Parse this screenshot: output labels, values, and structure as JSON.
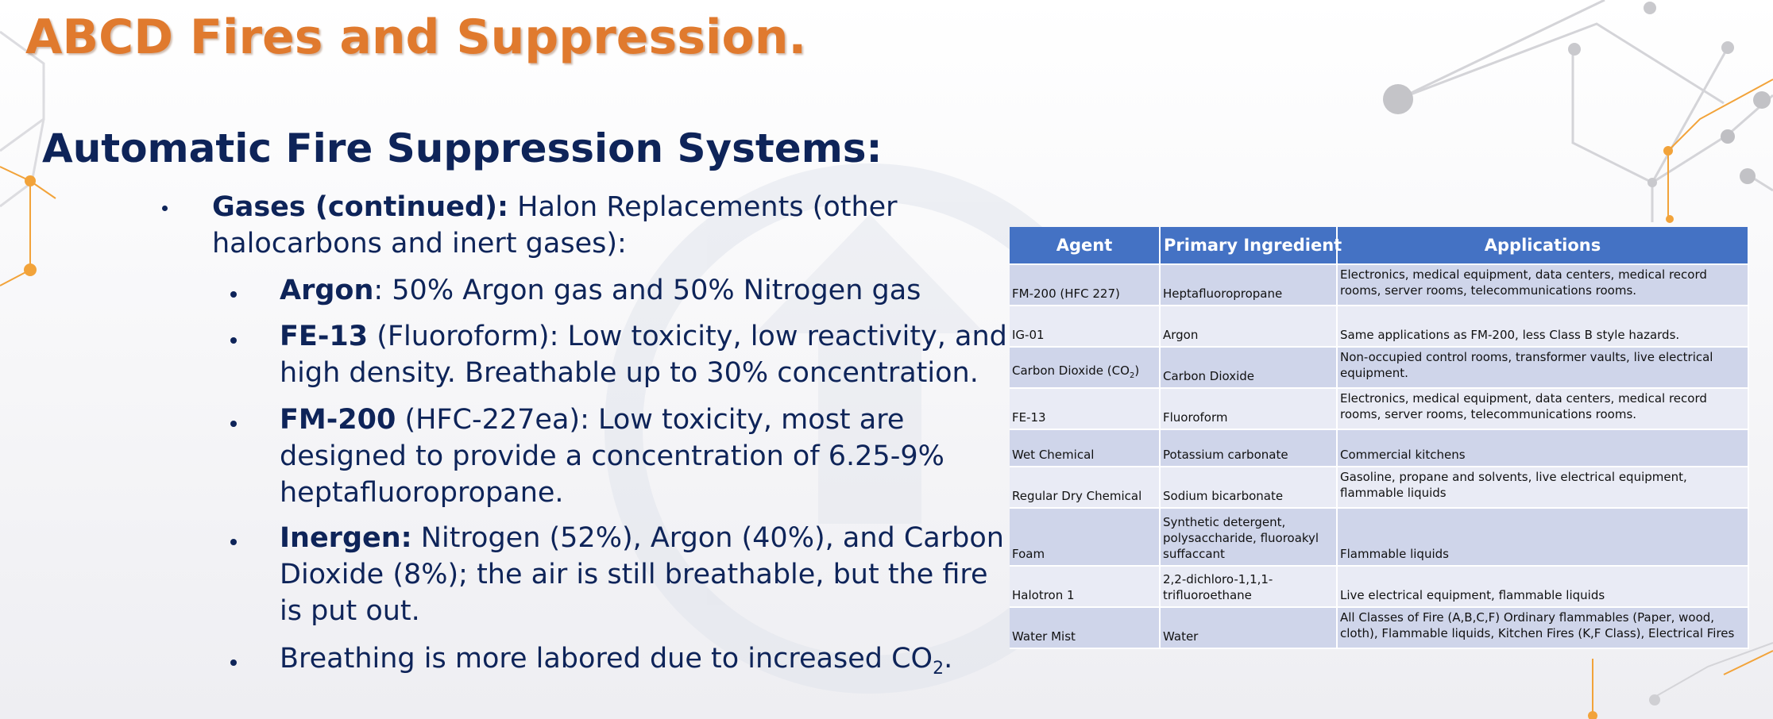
{
  "slide": {
    "title": "ABCD Fires and Suppression.",
    "subtitle": "Automatic Fire Suppression Systems:"
  },
  "bullets": {
    "gases": {
      "label": "Gases (continued):",
      "line1": " Halon Replacements (other",
      "line2": "halocarbons and inert gases):"
    },
    "argon": {
      "label": "Argon",
      "text": ": 50% Argon gas and 50% Nitrogen gas"
    },
    "fe13": {
      "label": "FE-13",
      "line1": " (Fluoroform): Low toxicity, low reactivity, and",
      "line2": "high density. Breathable up to 30% concentration."
    },
    "fm200": {
      "label": "FM-200",
      "line1": " (HFC-227ea): Low toxicity, most are",
      "line2": "designed to provide a concentration of 6.25-9%",
      "line3": "heptafluoropropane."
    },
    "inergen": {
      "label": "Inergen:",
      "line1": " Nitrogen (52%), Argon (40%), and Carbon",
      "line2": "Dioxide (8%); the air is still breathable, but the fire",
      "line3": "is put out."
    },
    "breathing": {
      "text": "Breathing is more labored due to increased CO",
      "sub": "2",
      "end": "."
    }
  },
  "table": {
    "headers": [
      "Agent",
      "Primary Ingredient",
      "Applications"
    ],
    "rows": [
      {
        "agent": "FM-200 (HFC 227)",
        "ingredient": "Heptafluoropropane",
        "applications": "Electronics, medical equipment, data centers, medical record rooms, server rooms, telecommunications rooms."
      },
      {
        "agent": "IG-01",
        "ingredient": "Argon",
        "applications": "Same applications as FM-200, less Class B style hazards."
      },
      {
        "agent": "Carbon Dioxide (CO",
        "agent_sub": "2",
        "agent_end": ")",
        "ingredient": "Carbon Dioxide",
        "applications": "Non-occupied control rooms, transformer vaults, live electrical equipment."
      },
      {
        "agent": "FE-13",
        "ingredient": "Fluoroform",
        "applications": "Electronics, medical equipment, data centers, medical record rooms, server rooms, telecommunications rooms."
      },
      {
        "agent": "Wet Chemical",
        "ingredient": "Potassium carbonate",
        "applications": "Commercial kitchens"
      },
      {
        "agent": "Regular Dry Chemical",
        "ingredient": "Sodium bicarbonate",
        "applications": "Gasoline, propane and solvents, live electrical equipment, flammable liquids"
      },
      {
        "agent": "Foam",
        "ingredient": "Synthetic detergent, polysaccharide, fluoroakyl suffaccant",
        "applications": "Flammable liquids"
      },
      {
        "agent": "Halotron 1",
        "ingredient": "2,2-dichloro-1,1,1-trifluoroethane",
        "applications": "Live electrical equipment, flammable liquids"
      },
      {
        "agent": "Water Mist",
        "ingredient": "Water",
        "applications": "All Classes of Fire (A,B,C,F) Ordinary flammables (Paper, wood, cloth), Flammable liquids, Kitchen Fires (K,F Class), Electrical Fires"
      }
    ]
  },
  "colors": {
    "title": "#e07a2e",
    "text": "#0e2459",
    "header_bg": "#4472c4",
    "row_dark": "#cfd5ea",
    "row_light": "#e9ebf5",
    "accent_orange": "#f2a33a",
    "network_gray": "#c9c9cd"
  }
}
